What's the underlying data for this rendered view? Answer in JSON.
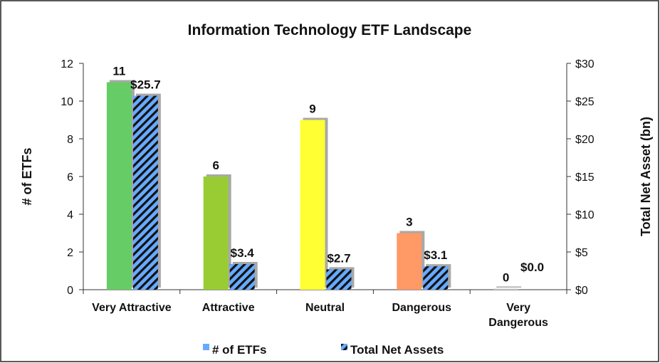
{
  "chart_data": {
    "type": "bar",
    "title": "Information Technology ETF Landscape",
    "ylabel_left": "# of ETFs",
    "ylabel_right": "Total Net Asset (bn)",
    "categories": [
      "Very Attractive",
      "Attractive",
      "Neutral",
      "Dangerous",
      "Very Dangerous"
    ],
    "category_colors": [
      "#66cc66",
      "#99cc33",
      "#ffff33",
      "#ff9966",
      "#cccccc"
    ],
    "ylim_left": [
      0,
      12
    ],
    "ylim_right": [
      0,
      30
    ],
    "left_ticks": [
      "0",
      "2",
      "4",
      "6",
      "8",
      "10",
      "12"
    ],
    "right_ticks": [
      "$0",
      "$5",
      "$10",
      "$15",
      "$20",
      "$25",
      "$30"
    ],
    "series": [
      {
        "name": "# of ETFs",
        "axis": "left",
        "values": [
          11,
          6,
          9,
          3,
          0
        ],
        "labels": [
          "11",
          "6",
          "9",
          "3",
          "0"
        ]
      },
      {
        "name": "Total Net Assets",
        "axis": "right",
        "values": [
          25.7,
          3.4,
          2.7,
          3.1,
          0.0
        ],
        "labels": [
          "$25.7",
          "$3.4",
          "$2.7",
          "$3.1",
          "$0.0"
        ]
      }
    ],
    "legend_position": "bottom",
    "grid": false,
    "colors": {
      "hatch_fill": "#66aaff",
      "hatch_stripe": "#111111",
      "legend_etf": "#66aaff",
      "border": "#222222"
    }
  }
}
